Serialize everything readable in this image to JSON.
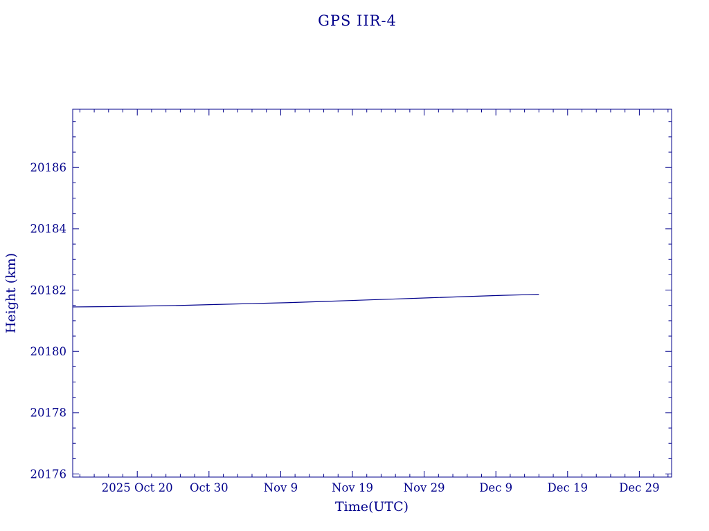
{
  "chart_data": {
    "type": "line",
    "title": "GPS IIR-4",
    "xlabel": "Time(UTC)",
    "ylabel": "Height (km)",
    "x_axis_note": "x values are day offsets; day 0 = left edge of plot, ticks labeled by calendar date",
    "xlim": [
      0,
      83.5
    ],
    "ylim": [
      20175.9,
      20187.9
    ],
    "xticks": [
      {
        "day": 9,
        "label": "2025 Oct 20"
      },
      {
        "day": 19,
        "label": "Oct 30"
      },
      {
        "day": 29,
        "label": "Nov 9"
      },
      {
        "day": 39,
        "label": "Nov 19"
      },
      {
        "day": 49,
        "label": "Nov 29"
      },
      {
        "day": 59,
        "label": "Dec 9"
      },
      {
        "day": 69,
        "label": "Dec 19"
      },
      {
        "day": 79,
        "label": "Dec 29"
      }
    ],
    "x_minor_step": 2,
    "yticks": [
      20176,
      20178,
      20180,
      20182,
      20184,
      20186
    ],
    "y_minor_step": 0.5,
    "series": [
      {
        "name": "height",
        "x": [
          0,
          5,
          10,
          15,
          20,
          25,
          30,
          35,
          40,
          45,
          50,
          55,
          60,
          65
        ],
        "y": [
          20181.45,
          20181.46,
          20181.48,
          20181.5,
          20181.53,
          20181.56,
          20181.59,
          20181.63,
          20181.67,
          20181.71,
          20181.75,
          20181.79,
          20181.83,
          20181.86
        ]
      }
    ],
    "line_color": "#00008b",
    "axis_color": "#00008b",
    "background": "#ffffff",
    "grid": false,
    "legend": "none"
  }
}
